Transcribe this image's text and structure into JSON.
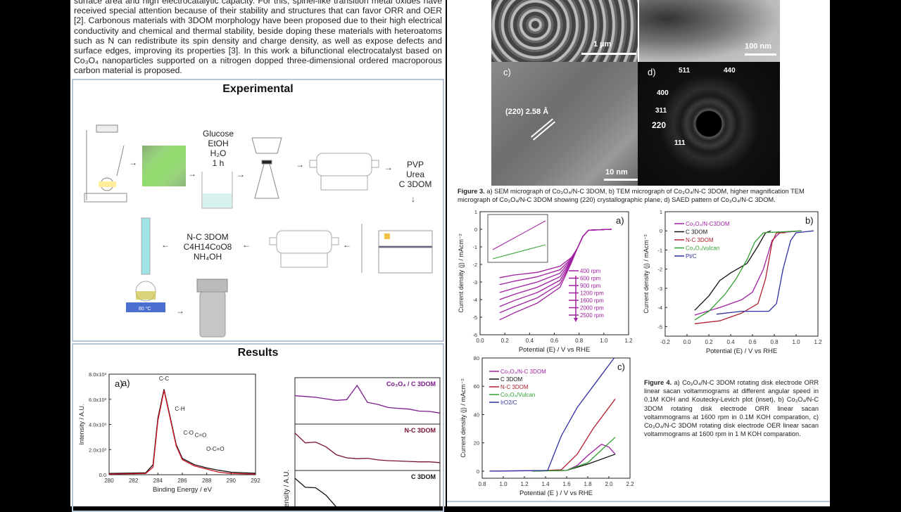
{
  "intro": {
    "text": "surface area and high electrocatalytic capacity. For this, spinel-like transition metal oxides have received special attention because of their stability and structures that can favor ORR and OER [2]. Carbonous materials with 3DOM morphology have been proposed due to their high electrical conductivity and chemical and thermal stability, beside doping these materials with heteroatoms such as N can redistribute its spin density and charge density, as well as expose defects and surface edges, improving its properties [3]. In this work a bifunctional electrocatalyst based on Co₃O₄ nanoparticles supported on a nitrogen dopped three-dimensional ordered macroporous carbon material is proposed."
  },
  "experimental": {
    "title": "Experimental",
    "step_glucose": [
      "Glucose",
      "EtOH",
      "H₂O",
      "1 h"
    ],
    "step_pvp": [
      "PVP",
      "Urea",
      "C 3DOM"
    ],
    "step_nc": [
      "N-C 3DOM",
      "C4H14CoO8",
      "NH₄OH"
    ],
    "arrow_right": "→",
    "arrow_left": "←",
    "arrow_down": "↓",
    "hotplate_readout": "80 °C"
  },
  "results": {
    "title": "Results"
  },
  "figure3": {
    "panels": {
      "a_scale": "1 µm",
      "b_scale": "100 nm",
      "c_label": "c)",
      "c_plane": "(220) 2.58 Å",
      "c_scale": "10 nm",
      "d_label": "d)",
      "d_rings": [
        "511",
        "440",
        "400",
        "311",
        "220",
        "111"
      ]
    },
    "caption_title": "Figure 3.",
    "caption": " a) SEM micrograph of Co₃O₄/N-C 3DOM, b) TEM micrograph of Co₃O₄/N-C 3DOM, higher magnification TEM micrograph of Co₃O₄/N-C 3DOM showing (220) crystallographic plane, d) SAED pattern of Co₃O₄/N-C 3DOM."
  },
  "figure4": {
    "caption_title": "Figure 4.",
    "caption": " a) Co₃O₄/N-C 3DOM rotating disk electrode ORR linear sacan voltammograms at different angular speed in 0.1M KOH and Koutecky-Levich plot (inset), b) Co₃O₄/N-C 3DOM rotating disk electrode ORR linear sacan voltammograms at 1600 rpm in 0.1M KOH comparation, c) Co₃O₄/N-C 3DOM rotating disk electrode OER linear sacan voltammograms at 1600 rpm in 1 M KOH comparation."
  },
  "chart_data": [
    {
      "id": "xps",
      "type": "line",
      "panel_label": "a)",
      "xlabel": "Binding Energy / eV",
      "ylabel": "Intensity / A.U.",
      "xlim": [
        280,
        292
      ],
      "ylim": [
        0,
        8
      ],
      "xticks": [
        280,
        282,
        284,
        286,
        288,
        290,
        292
      ],
      "yticks": [
        "0.0",
        "2.0x10³",
        "4.0x10³",
        "6.0x10³",
        "8.0x10³"
      ],
      "annotations": [
        "C-C",
        "C-H",
        "C-O",
        "C=O",
        "O-C=O"
      ],
      "series": [
        {
          "color": "#111111",
          "x": [
            280,
            283,
            283.6,
            284,
            284.5,
            285,
            285.5,
            286,
            287,
            288,
            289,
            290,
            292
          ],
          "y": [
            0.1,
            0.15,
            0.8,
            4.5,
            6.8,
            4.6,
            2.4,
            1.3,
            0.8,
            0.55,
            0.35,
            0.2,
            0.12
          ]
        },
        {
          "color": "#cc1122",
          "x": [
            280,
            283,
            283.6,
            284,
            284.5,
            285,
            285.5,
            286,
            287,
            288,
            289,
            290,
            292
          ],
          "y": [
            0.05,
            0.1,
            0.6,
            4.3,
            6.7,
            4.5,
            2.3,
            1.2,
            0.7,
            0.45,
            0.2,
            0.1,
            0.05
          ]
        }
      ]
    },
    {
      "id": "xrd",
      "type": "line",
      "ylabel": "Intensity / A.U.",
      "series": [
        {
          "name": "Co₃O₄ / C 3DOM",
          "color": "#7a1a8a",
          "y": [
            0.72,
            0.7,
            0.68,
            0.64,
            0.6,
            0.62,
            0.98,
            0.55,
            0.5,
            0.42,
            0.4,
            0.38,
            0.33,
            0.32,
            0.28
          ]
        },
        {
          "name": "N-C 3DOM",
          "color": "#7a1030",
          "y": [
            0.95,
            0.7,
            0.72,
            0.6,
            0.4,
            0.32,
            0.3,
            0.31,
            0.27,
            0.25,
            0.24,
            0.23,
            0.22,
            0.22,
            0.2
          ]
        },
        {
          "name": "C 3DOM",
          "color": "#111111",
          "y": [
            0.98,
            0.75,
            0.74,
            0.55,
            0.25,
            0.05,
            0,
            0,
            0,
            0,
            0,
            0,
            0,
            0,
            0
          ]
        }
      ]
    },
    {
      "id": "orr_rpm",
      "type": "line",
      "panel_label": "a)",
      "xlabel": "Potential (E) / V vs RHE",
      "ylabel": "Current density (j) / mAcm⁻²",
      "xlim": [
        -0.1,
        1.2
      ],
      "ylim": [
        -6,
        1
      ],
      "xticks": [
        "0.0",
        "0.2",
        "0.4",
        "0.6",
        "0.8",
        "1.0",
        "1.2"
      ],
      "yticks": [
        "1",
        "0",
        "-1",
        "-2",
        "-3",
        "-4",
        "-5",
        "-6"
      ],
      "x": [
        0.07,
        0.2,
        0.4,
        0.6,
        0.7,
        0.75,
        0.8,
        0.85,
        1.05
      ],
      "color": "#a020a0",
      "series": [
        {
          "name": "400 rpm",
          "values": [
            -2.75,
            -2.6,
            -2.45,
            -2.1,
            -1.6,
            -1.1,
            -0.4,
            -0.05,
            0
          ]
        },
        {
          "name": "600 rpm",
          "values": [
            -3.15,
            -2.95,
            -2.7,
            -2.3,
            -1.65,
            -1.1,
            -0.4,
            -0.05,
            0
          ]
        },
        {
          "name": "900 rpm",
          "values": [
            -3.6,
            -3.35,
            -3.0,
            -2.5,
            -1.7,
            -1.1,
            -0.4,
            -0.05,
            0
          ]
        },
        {
          "name": "1200 rpm",
          "values": [
            -4.0,
            -3.7,
            -3.3,
            -2.7,
            -1.75,
            -1.1,
            -0.4,
            -0.05,
            0
          ]
        },
        {
          "name": "1600 rpm",
          "values": [
            -4.4,
            -4.05,
            -3.6,
            -2.9,
            -1.8,
            -1.1,
            -0.4,
            -0.05,
            0
          ]
        },
        {
          "name": "2000 rpm",
          "values": [
            -4.75,
            -4.4,
            -3.9,
            -3.1,
            -1.85,
            -1.1,
            -0.4,
            -0.05,
            0
          ]
        },
        {
          "name": "2500 rpm",
          "values": [
            -5.15,
            -4.75,
            -4.2,
            -3.3,
            -1.9,
            -1.1,
            -0.4,
            -0.05,
            0
          ]
        }
      ],
      "legend": "right",
      "inset": "Koutecky-Levich plot"
    },
    {
      "id": "orr_cmp",
      "type": "line",
      "panel_label": "b)",
      "xlabel": "Potential (E) / V vs RHE",
      "ylabel": "Current density (j) / mAcm⁻²",
      "xlim": [
        -0.2,
        1.2
      ],
      "ylim": [
        -5.5,
        1
      ],
      "xticks": [
        "-0.2",
        "0.0",
        "0.2",
        "0.4",
        "0.6",
        "0.8",
        "1.0",
        "1.2"
      ],
      "yticks": [
        "1",
        "0",
        "-1",
        "-2",
        "-3",
        "-4",
        "-5"
      ],
      "legend": "top-left",
      "series": [
        {
          "name": "Co₃O₄/N-C3DOM",
          "color": "#a020a0",
          "x": [
            0.07,
            0.3,
            0.5,
            0.6,
            0.7,
            0.78,
            0.85,
            1.05
          ],
          "y": [
            -4.4,
            -4.0,
            -3.6,
            -3.2,
            -2.0,
            -0.5,
            -0.1,
            0
          ]
        },
        {
          "name": "C 3DOM",
          "color": "#111111",
          "x": [
            0.07,
            0.2,
            0.3,
            0.4,
            0.55,
            0.65,
            0.72,
            0.77
          ],
          "y": [
            -4.15,
            -3.4,
            -2.6,
            -2.2,
            -1.7,
            -0.8,
            -0.1,
            0
          ]
        },
        {
          "name": "N-C 3DOM",
          "color": "#b02030",
          "x": [
            0.07,
            0.3,
            0.5,
            0.65,
            0.72,
            0.78,
            0.82,
            0.9
          ],
          "y": [
            -4.85,
            -4.7,
            -4.3,
            -3.8,
            -2.5,
            -0.6,
            -0.1,
            -0.1
          ]
        },
        {
          "name": "Co₃O₄/vulcan",
          "color": "#30a030",
          "x": [
            0.07,
            0.2,
            0.35,
            0.45,
            0.55,
            0.62,
            0.7,
            1.05
          ],
          "y": [
            -4.65,
            -4.2,
            -3.3,
            -2.5,
            -1.5,
            -0.6,
            -0.1,
            0
          ]
        },
        {
          "name": "Pt/C",
          "color": "#3030a0",
          "x": [
            0.27,
            0.5,
            0.75,
            0.82,
            0.88,
            0.95,
            1.0,
            1.16
          ],
          "y": [
            -4.35,
            -4.2,
            -4.2,
            -3.8,
            -2.0,
            -0.5,
            -0.1,
            0
          ]
        }
      ]
    },
    {
      "id": "oer_cmp",
      "type": "line",
      "panel_label": "c)",
      "xlabel": "Potential (E ) / V vs RHE",
      "ylabel": "Current density (j) / mAcm⁻²",
      "xlim": [
        0.8,
        2.2
      ],
      "ylim": [
        -5,
        80
      ],
      "xticks": [
        "0.8",
        "1.0",
        "1.2",
        "1.4",
        "1.6",
        "1.8",
        "2.0",
        "2.2"
      ],
      "yticks": [
        "0",
        "20",
        "40",
        "60",
        "80"
      ],
      "legend": "top-left",
      "series": [
        {
          "name": "Co₃O₄/N-C 3DOM",
          "color": "#a020a0",
          "x": [
            0.87,
            1.6,
            1.7,
            1.8,
            1.93,
            2.0,
            2.06
          ],
          "y": [
            0,
            0.5,
            4,
            11,
            19,
            17,
            12
          ]
        },
        {
          "name": "C 3DOM",
          "color": "#111111",
          "x": [
            1.27,
            1.6,
            1.8,
            2.06
          ],
          "y": [
            0,
            0.5,
            5,
            12
          ]
        },
        {
          "name": "N-C 3DOM",
          "color": "#b02030",
          "x": [
            1.27,
            1.55,
            1.7,
            1.85,
            2.06
          ],
          "y": [
            0,
            1,
            12,
            30,
            51
          ]
        },
        {
          "name": "Co₃O₄/Vulcan",
          "color": "#30a030",
          "x": [
            1.27,
            1.6,
            1.8,
            2.06
          ],
          "y": [
            0,
            0.5,
            6,
            24
          ]
        },
        {
          "name": "IrO2/C",
          "color": "#3030a0",
          "x": [
            0.87,
            1.42,
            1.55,
            1.7,
            1.9,
            2.05
          ],
          "y": [
            0,
            0.5,
            25,
            45,
            65,
            80
          ]
        }
      ]
    }
  ]
}
